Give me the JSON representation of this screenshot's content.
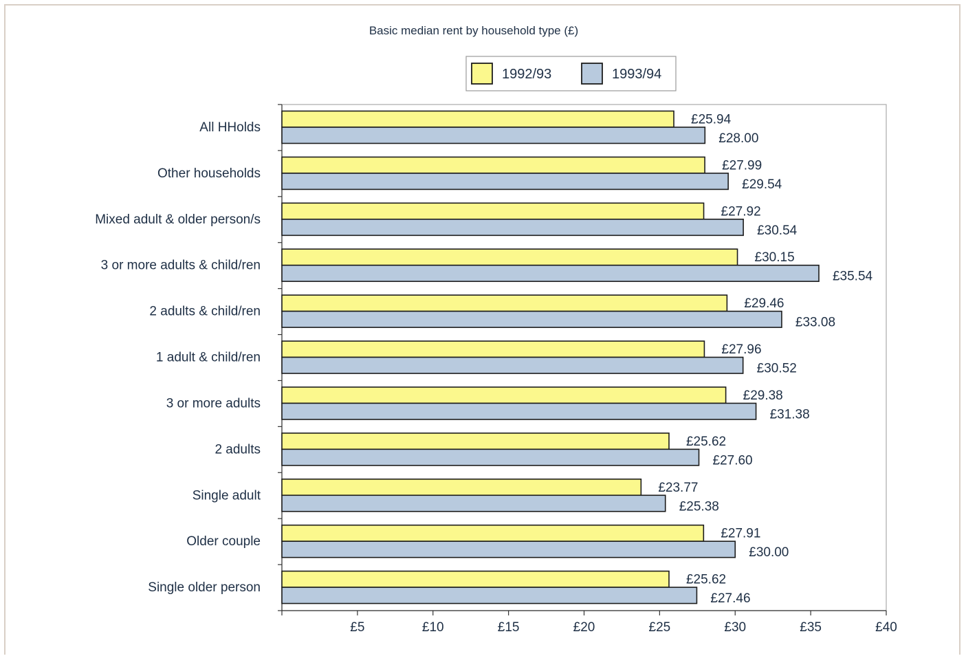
{
  "chart_data": {
    "type": "bar",
    "orientation": "horizontal",
    "title": "Basic median rent by household type (£)",
    "categories": [
      "All HHolds",
      "Other households",
      "Mixed adult & older person/s",
      "3 or more adults & child/ren",
      "2 adults & child/ren",
      "1 adult & child/ren",
      "3 or more adults",
      "2 adults",
      "Single adult",
      "Older couple",
      "Single older person"
    ],
    "series": [
      {
        "name": "1992/93",
        "color": "#fbf88d",
        "values": [
          25.94,
          27.99,
          27.92,
          30.15,
          29.46,
          27.96,
          29.38,
          25.62,
          23.77,
          27.91,
          25.62
        ],
        "labels": [
          "£25.94",
          "£27.99",
          "£27.92",
          "£30.15",
          "£29.46",
          "£27.96",
          "£29.38",
          "£25.62",
          "£23.77",
          "£27.91",
          "£25.62"
        ]
      },
      {
        "name": "1993/94",
        "color": "#b8cade",
        "values": [
          28.0,
          29.54,
          30.54,
          35.54,
          33.08,
          30.52,
          31.38,
          27.6,
          25.38,
          30.0,
          27.46
        ],
        "labels": [
          "£28.00",
          "£29.54",
          "£30.54",
          "£35.54",
          "£33.08",
          "£30.52",
          "£31.38",
          "£27.60",
          "£25.38",
          "£30.00",
          "£27.46"
        ]
      }
    ],
    "xlim": [
      0,
      40
    ],
    "xticks": [
      5,
      10,
      15,
      20,
      25,
      30,
      35,
      40
    ],
    "xtick_labels": [
      "£5",
      "£10",
      "£15",
      "£20",
      "£25",
      "£30",
      "£35",
      "£40"
    ],
    "xlabel": "",
    "ylabel": "",
    "grid": false,
    "legend_position": "top-center"
  }
}
